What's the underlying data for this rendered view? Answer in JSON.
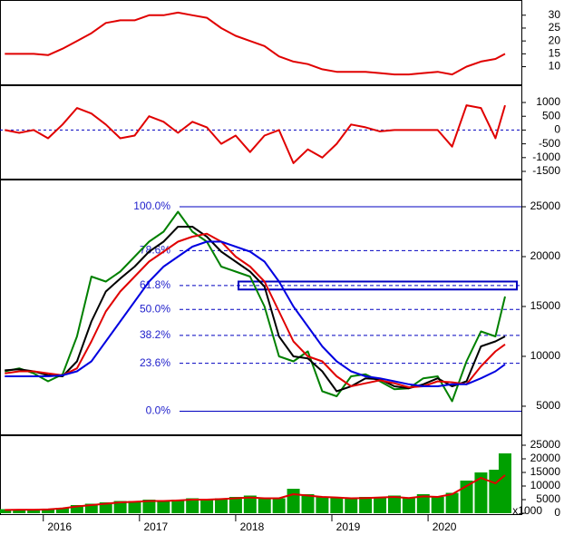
{
  "chart_data": [
    {
      "type": "line",
      "x": [
        2015.6,
        2015.75,
        2015.9,
        2016.05,
        2016.2,
        2016.35,
        2016.5,
        2016.65,
        2016.8,
        2016.95,
        2017.1,
        2017.25,
        2017.4,
        2017.55,
        2017.7,
        2017.85,
        2018.0,
        2018.15,
        2018.3,
        2018.45,
        2018.6,
        2018.75,
        2018.9,
        2019.05,
        2019.2,
        2019.35,
        2019.5,
        2019.65,
        2019.8,
        2019.95,
        2020.1,
        2020.25,
        2020.4,
        2020.55,
        2020.7,
        2020.8
      ],
      "xlim": [
        2015.55,
        2020.97
      ],
      "ylim": [
        3.5,
        35.2
      ],
      "yticks": [
        30,
        25,
        20,
        15,
        10
      ],
      "series": [
        {
          "color": "#e00000",
          "values": [
            15,
            15,
            15,
            14.5,
            17,
            20,
            23,
            27,
            28,
            28,
            30,
            30,
            31,
            30,
            29,
            25,
            22,
            20,
            18,
            14,
            12,
            11,
            9,
            8,
            8,
            8,
            7.5,
            7,
            7,
            7.5,
            8,
            7,
            10,
            12,
            13,
            15
          ]
        }
      ]
    },
    {
      "type": "line",
      "x": [
        2015.6,
        2015.75,
        2015.9,
        2016.05,
        2016.2,
        2016.35,
        2016.5,
        2016.65,
        2016.8,
        2016.95,
        2017.1,
        2017.25,
        2017.4,
        2017.55,
        2017.7,
        2017.85,
        2018.0,
        2018.15,
        2018.3,
        2018.45,
        2018.6,
        2018.75,
        2018.9,
        2019.05,
        2019.2,
        2019.35,
        2019.5,
        2019.65,
        2019.8,
        2019.95,
        2020.1,
        2020.25,
        2020.4,
        2020.55,
        2020.7,
        2020.8
      ],
      "xlim": [
        2015.55,
        2020.97
      ],
      "ylim": [
        -1730,
        1560
      ],
      "yticks": [
        1000,
        500,
        0,
        -500,
        -1000,
        -1500
      ],
      "series": [
        {
          "color": "#e00000",
          "values": [
            0,
            -100,
            0,
            -300,
            200,
            800,
            600,
            200,
            -300,
            -200,
            500,
            300,
            -100,
            300,
            100,
            -500,
            -200,
            -800,
            -200,
            0,
            -1200,
            -700,
            -1000,
            -500,
            200,
            100,
            -50,
            0,
            0,
            0,
            0,
            -600,
            900,
            800,
            -300,
            900
          ]
        }
      ]
    },
    {
      "type": "line",
      "x": [
        2015.6,
        2015.75,
        2015.9,
        2016.05,
        2016.2,
        2016.35,
        2016.5,
        2016.65,
        2016.8,
        2016.95,
        2017.1,
        2017.25,
        2017.4,
        2017.55,
        2017.7,
        2017.85,
        2018.0,
        2018.15,
        2018.3,
        2018.45,
        2018.6,
        2018.75,
        2018.9,
        2019.05,
        2019.2,
        2019.35,
        2019.5,
        2019.65,
        2019.8,
        2019.95,
        2020.1,
        2020.25,
        2020.4,
        2020.55,
        2020.7,
        2020.8
      ],
      "xlim": [
        2015.55,
        2020.97
      ],
      "ylim": [
        2270,
        27545
      ],
      "yticks": [
        25000,
        20000,
        15000,
        10000,
        5000
      ],
      "series": [
        {
          "color": "#008000",
          "values": [
            8500,
            8800,
            8300,
            7500,
            8200,
            12000,
            18000,
            17500,
            18500,
            20000,
            21500,
            22500,
            24500,
            22500,
            21500,
            19000,
            18500,
            18000,
            15000,
            10000,
            9500,
            10500,
            6500,
            6000,
            8000,
            8200,
            7500,
            6700,
            6800,
            7800,
            8000,
            5500,
            9500,
            12500,
            12000,
            16000
          ]
        },
        {
          "color": "#000000",
          "values": [
            8600,
            8700,
            8500,
            8100,
            8000,
            9500,
            13500,
            16500,
            17800,
            19000,
            20500,
            21500,
            23000,
            23000,
            22000,
            20500,
            19500,
            18500,
            17000,
            12000,
            10000,
            9800,
            8500,
            6500,
            7000,
            7800,
            7700,
            7000,
            6800,
            7200,
            7800,
            7000,
            7500,
            11000,
            11500,
            12000
          ]
        },
        {
          "color": "#e00000",
          "values": [
            8300,
            8500,
            8500,
            8300,
            8100,
            8800,
            11500,
            14500,
            16500,
            18000,
            19500,
            20500,
            21500,
            22000,
            22300,
            21500,
            20000,
            19000,
            17500,
            14500,
            11500,
            10000,
            9500,
            8000,
            7000,
            7300,
            7600,
            7300,
            6900,
            7000,
            7500,
            7400,
            7200,
            9000,
            10500,
            11200
          ]
        },
        {
          "color": "#0000e0",
          "values": [
            8000,
            8000,
            8000,
            8000,
            8100,
            8500,
            9500,
            11500,
            13500,
            15500,
            17500,
            19000,
            20000,
            21000,
            21500,
            21500,
            21000,
            20500,
            19500,
            17500,
            15000,
            13000,
            11000,
            9500,
            8500,
            8000,
            7800,
            7500,
            7200,
            7000,
            7000,
            7200,
            7200,
            7800,
            8500,
            9200
          ]
        }
      ],
      "fib_levels": [
        {
          "value": 25000,
          "label": "100.0%"
        },
        {
          "value": 20600,
          "label": "78.6%"
        },
        {
          "value": 17100,
          "label": "61.8%"
        },
        {
          "value": 14700,
          "label": "50.0%"
        },
        {
          "value": 12100,
          "label": "38.2%"
        },
        {
          "value": 9300,
          "label": "23.6%"
        },
        {
          "value": 4500,
          "label": "0.0%"
        }
      ],
      "zone": [
        16700,
        17500
      ]
    },
    {
      "type": "bar",
      "x": [
        2015.6,
        2015.75,
        2015.9,
        2016.05,
        2016.2,
        2016.35,
        2016.5,
        2016.65,
        2016.8,
        2016.95,
        2017.1,
        2017.25,
        2017.4,
        2017.55,
        2017.7,
        2017.85,
        2018.0,
        2018.15,
        2018.3,
        2018.45,
        2018.6,
        2018.75,
        2018.9,
        2019.05,
        2019.2,
        2019.35,
        2019.5,
        2019.65,
        2019.8,
        2019.95,
        2020.1,
        2020.25,
        2020.4,
        2020.55,
        2020.7,
        2020.8
      ],
      "xlim": [
        2015.55,
        2020.97
      ],
      "ylim": [
        0,
        28000
      ],
      "yticks": [
        25000,
        20000,
        15000,
        10000,
        5000,
        0
      ],
      "unit_label": "x1000",
      "xticks": [
        2016,
        2017,
        2018,
        2019,
        2020
      ],
      "color": "#00a000",
      "values": [
        1500,
        1500,
        1000,
        1500,
        2000,
        3000,
        3500,
        4000,
        4500,
        4500,
        5000,
        4500,
        5000,
        5500,
        5000,
        5500,
        6000,
        6500,
        5500,
        5500,
        9000,
        7000,
        6000,
        6000,
        5500,
        6000,
        6000,
        6500,
        5500,
        7000,
        6000,
        7500,
        12000,
        15000,
        16000,
        22000
      ],
      "series": [
        {
          "color": "#e00000",
          "values": [
            1200,
            1300,
            1300,
            1400,
            1800,
            2500,
            3000,
            3500,
            4000,
            4200,
            4500,
            4500,
            4700,
            5000,
            5000,
            5200,
            5500,
            5800,
            5500,
            5500,
            7000,
            6500,
            6000,
            5800,
            5500,
            5600,
            5800,
            6000,
            5600,
            6200,
            6000,
            7000,
            10000,
            13000,
            11000,
            14000
          ]
        }
      ]
    }
  ]
}
